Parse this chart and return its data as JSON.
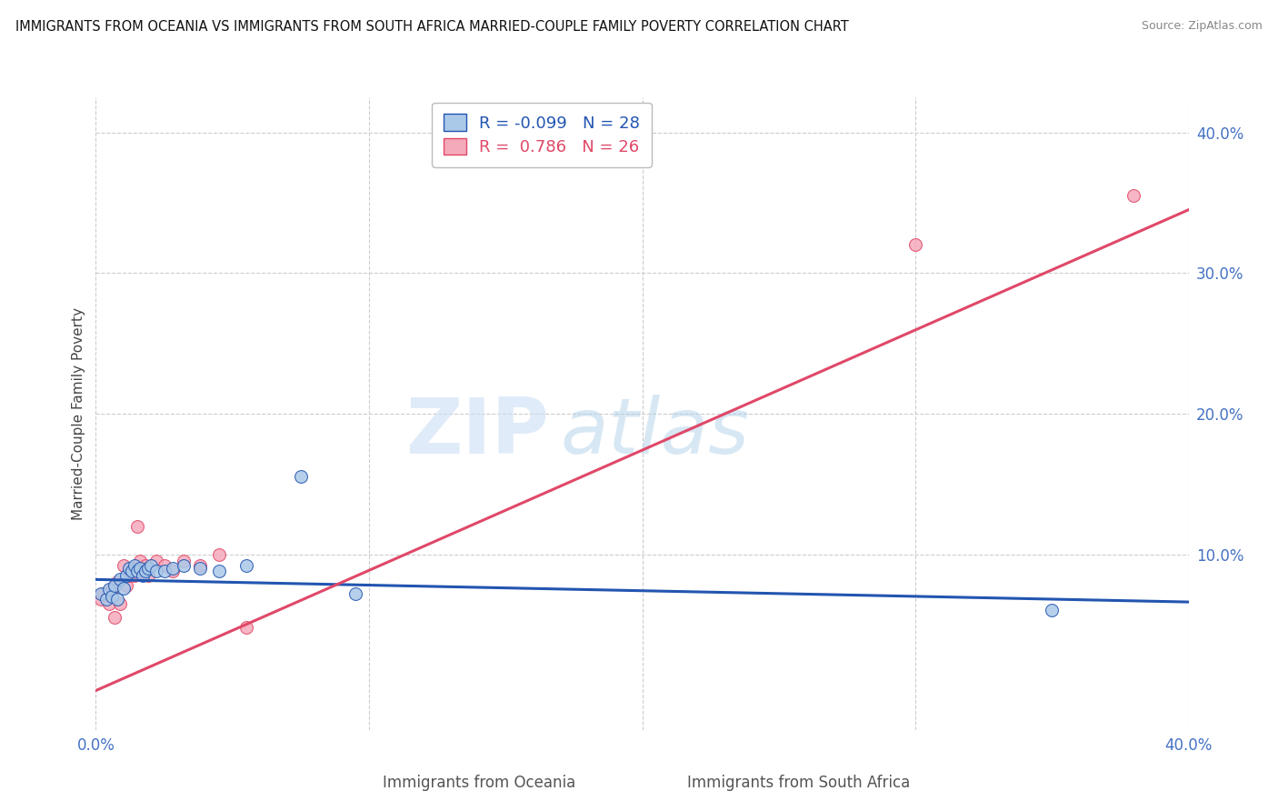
{
  "title": "IMMIGRANTS FROM OCEANIA VS IMMIGRANTS FROM SOUTH AFRICA MARRIED-COUPLE FAMILY POVERTY CORRELATION CHART",
  "source": "Source: ZipAtlas.com",
  "xlabel_left": "Immigrants from Oceania",
  "xlabel_right": "Immigrants from South Africa",
  "ylabel": "Married-Couple Family Poverty",
  "xlim": [
    0.0,
    0.4
  ],
  "ylim": [
    -0.025,
    0.425
  ],
  "legend_r1": "-0.099",
  "legend_n1": "28",
  "legend_r2": "0.786",
  "legend_n2": "26",
  "color_oceania": "#aac8e8",
  "color_sa": "#f5aabb",
  "line_color_oceania": "#2255b0",
  "line_color_sa": "#e04868",
  "background_color": "#ffffff",
  "grid_color": "#cccccc",
  "title_color": "#111111",
  "source_color": "#888888",
  "tick_color": "#4472c4",
  "ylabel_color": "#444444",
  "oceania_x": [
    0.002,
    0.004,
    0.005,
    0.006,
    0.007,
    0.008,
    0.009,
    0.01,
    0.011,
    0.012,
    0.013,
    0.014,
    0.015,
    0.016,
    0.017,
    0.018,
    0.019,
    0.02,
    0.022,
    0.025,
    0.028,
    0.032,
    0.038,
    0.045,
    0.055,
    0.075,
    0.095,
    0.35
  ],
  "oceania_y": [
    0.072,
    0.068,
    0.075,
    0.07,
    0.078,
    0.068,
    0.082,
    0.076,
    0.085,
    0.09,
    0.088,
    0.092,
    0.088,
    0.09,
    0.085,
    0.088,
    0.09,
    0.092,
    0.088,
    0.088,
    0.09,
    0.092,
    0.09,
    0.088,
    0.092,
    0.155,
    0.072,
    0.06
  ],
  "sa_x": [
    0.002,
    0.003,
    0.005,
    0.006,
    0.007,
    0.008,
    0.009,
    0.01,
    0.011,
    0.012,
    0.013,
    0.014,
    0.015,
    0.016,
    0.017,
    0.018,
    0.019,
    0.022,
    0.025,
    0.028,
    0.032,
    0.038,
    0.045,
    0.055,
    0.3,
    0.38
  ],
  "sa_y": [
    0.068,
    0.072,
    0.065,
    0.075,
    0.055,
    0.08,
    0.065,
    0.092,
    0.078,
    0.085,
    0.09,
    0.085,
    0.12,
    0.095,
    0.088,
    0.092,
    0.085,
    0.095,
    0.092,
    0.088,
    0.095,
    0.092,
    0.1,
    0.048,
    0.32,
    0.355
  ],
  "oceania_line_x": [
    0.0,
    0.4
  ],
  "oceania_line_y": [
    0.082,
    0.066
  ],
  "sa_line_x": [
    0.0,
    0.4
  ],
  "sa_line_y": [
    0.003,
    0.345
  ]
}
